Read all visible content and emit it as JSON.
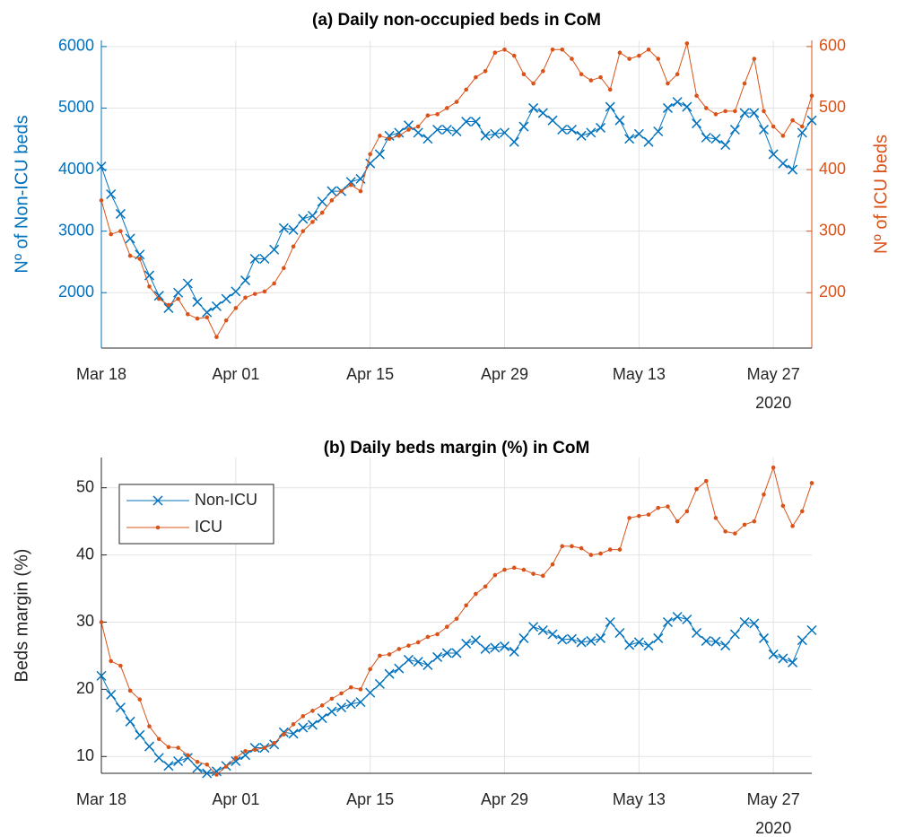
{
  "chart_data": [
    {
      "type": "line",
      "title": "(a) Daily non-occupied beds in CoM",
      "x": [
        "2020-03-18",
        "2020-03-19",
        "2020-03-20",
        "2020-03-21",
        "2020-03-22",
        "2020-03-23",
        "2020-03-24",
        "2020-03-25",
        "2020-03-26",
        "2020-03-27",
        "2020-03-28",
        "2020-03-29",
        "2020-03-30",
        "2020-03-31",
        "2020-04-01",
        "2020-04-02",
        "2020-04-03",
        "2020-04-04",
        "2020-04-05",
        "2020-04-06",
        "2020-04-07",
        "2020-04-08",
        "2020-04-09",
        "2020-04-10",
        "2020-04-11",
        "2020-04-12",
        "2020-04-13",
        "2020-04-14",
        "2020-04-15",
        "2020-04-16",
        "2020-04-17",
        "2020-04-18",
        "2020-04-19",
        "2020-04-20",
        "2020-04-21",
        "2020-04-22",
        "2020-04-23",
        "2020-04-24",
        "2020-04-25",
        "2020-04-26",
        "2020-04-27",
        "2020-04-28",
        "2020-04-29",
        "2020-04-30",
        "2020-05-01",
        "2020-05-02",
        "2020-05-03",
        "2020-05-04",
        "2020-05-05",
        "2020-05-06",
        "2020-05-07",
        "2020-05-08",
        "2020-05-09",
        "2020-05-10",
        "2020-05-11",
        "2020-05-12",
        "2020-05-13",
        "2020-05-14",
        "2020-05-15",
        "2020-05-16",
        "2020-05-17",
        "2020-05-18",
        "2020-05-19",
        "2020-05-20",
        "2020-05-21",
        "2020-05-22",
        "2020-05-23",
        "2020-05-24",
        "2020-05-25",
        "2020-05-26",
        "2020-05-27",
        "2020-05-28",
        "2020-05-29",
        "2020-05-30",
        "2020-05-31"
      ],
      "xlim": [
        "2020-03-18",
        "2020-05-31"
      ],
      "xticks": [
        {
          "value": "2020-03-18",
          "label": "Mar 18"
        },
        {
          "value": "2020-04-01",
          "label": "Apr 01"
        },
        {
          "value": "2020-04-15",
          "label": "Apr 15"
        },
        {
          "value": "2020-04-29",
          "label": "Apr 29"
        },
        {
          "value": "2020-05-13",
          "label": "May 13"
        },
        {
          "value": "2020-05-27",
          "label": "May 27"
        }
      ],
      "x_year": "2020",
      "ylabel": "Nº of Non-ICU beds",
      "y2label": "Nº of ICU beds",
      "ycolor": "#0072BD",
      "y2color": "#D95319",
      "ylim": [
        1100,
        6100
      ],
      "yticks": [
        2000,
        3000,
        4000,
        5000,
        6000
      ],
      "y2lim": [
        110,
        610
      ],
      "y2ticks": [
        200,
        300,
        400,
        500,
        600
      ],
      "grid": true,
      "series": [
        {
          "color": "#0072BD",
          "marker": "x",
          "values": [
            4050,
            3600,
            3280,
            2880,
            2620,
            2280,
            1950,
            1750,
            2000,
            2150,
            1850,
            1680,
            1780,
            1900,
            2020,
            2200,
            2550,
            2550,
            2700,
            3050,
            3020,
            3200,
            3250,
            3480,
            3650,
            3650,
            3800,
            3850,
            4100,
            4250,
            4550,
            4600,
            4720,
            4600,
            4500,
            4650,
            4650,
            4620,
            4780,
            4780,
            4550,
            4580,
            4600,
            4450,
            4700,
            5000,
            4920,
            4800,
            4650,
            4650,
            4550,
            4600,
            4680,
            5020,
            4800,
            4500,
            4580,
            4450,
            4620,
            5000,
            5100,
            5020,
            4750,
            4520,
            4500,
            4400,
            4650,
            4920,
            4920,
            4650,
            4250,
            4100,
            4000,
            4600,
            4800
          ]
        },
        {
          "color": "#D95319",
          "marker": "dot",
          "axis": "y2",
          "values": [
            350,
            295,
            300,
            260,
            255,
            210,
            190,
            180,
            190,
            165,
            158,
            160,
            128,
            155,
            175,
            192,
            198,
            202,
            215,
            240,
            275,
            300,
            315,
            330,
            350,
            365,
            375,
            365,
            425,
            455,
            450,
            455,
            465,
            470,
            488,
            490,
            500,
            510,
            530,
            550,
            560,
            590,
            595,
            585,
            555,
            540,
            560,
            595,
            595,
            580,
            555,
            545,
            550,
            530,
            590,
            580,
            585,
            595,
            580,
            540,
            555,
            605,
            520,
            500,
            490,
            495,
            495,
            540,
            580,
            495,
            470,
            455,
            480,
            470,
            520
          ]
        }
      ]
    },
    {
      "type": "line",
      "title": "(b) Daily beds margin (%) in CoM",
      "x": [
        "2020-03-18",
        "2020-03-19",
        "2020-03-20",
        "2020-03-21",
        "2020-03-22",
        "2020-03-23",
        "2020-03-24",
        "2020-03-25",
        "2020-03-26",
        "2020-03-27",
        "2020-03-28",
        "2020-03-29",
        "2020-03-30",
        "2020-03-31",
        "2020-04-01",
        "2020-04-02",
        "2020-04-03",
        "2020-04-04",
        "2020-04-05",
        "2020-04-06",
        "2020-04-07",
        "2020-04-08",
        "2020-04-09",
        "2020-04-10",
        "2020-04-11",
        "2020-04-12",
        "2020-04-13",
        "2020-04-14",
        "2020-04-15",
        "2020-04-16",
        "2020-04-17",
        "2020-04-18",
        "2020-04-19",
        "2020-04-20",
        "2020-04-21",
        "2020-04-22",
        "2020-04-23",
        "2020-04-24",
        "2020-04-25",
        "2020-04-26",
        "2020-04-27",
        "2020-04-28",
        "2020-04-29",
        "2020-04-30",
        "2020-05-01",
        "2020-05-02",
        "2020-05-03",
        "2020-05-04",
        "2020-05-05",
        "2020-05-06",
        "2020-05-07",
        "2020-05-08",
        "2020-05-09",
        "2020-05-10",
        "2020-05-11",
        "2020-05-12",
        "2020-05-13",
        "2020-05-14",
        "2020-05-15",
        "2020-05-16",
        "2020-05-17",
        "2020-05-18",
        "2020-05-19",
        "2020-05-20",
        "2020-05-21",
        "2020-05-22",
        "2020-05-23",
        "2020-05-24",
        "2020-05-25",
        "2020-05-26",
        "2020-05-27",
        "2020-05-28",
        "2020-05-29",
        "2020-05-30",
        "2020-05-31"
      ],
      "xlim": [
        "2020-03-18",
        "2020-05-31"
      ],
      "xticks": [
        {
          "value": "2020-03-18",
          "label": "Mar 18"
        },
        {
          "value": "2020-04-01",
          "label": "Apr 01"
        },
        {
          "value": "2020-04-15",
          "label": "Apr 15"
        },
        {
          "value": "2020-04-29",
          "label": "Apr 29"
        },
        {
          "value": "2020-05-13",
          "label": "May 13"
        },
        {
          "value": "2020-05-27",
          "label": "May 27"
        }
      ],
      "x_year": "2020",
      "ylabel": "Beds margin (%)",
      "ycolor": "#262626",
      "ylim": [
        7.5,
        54.5
      ],
      "yticks": [
        10,
        20,
        30,
        40,
        50
      ],
      "grid": true,
      "legend": "northwest",
      "series": [
        {
          "name": "Non-ICU",
          "color": "#0072BD",
          "marker": "x",
          "values": [
            22,
            19.2,
            17.3,
            15.2,
            13.2,
            11.5,
            9.8,
            8.6,
            9.3,
            9.8,
            8.3,
            7.5,
            7.8,
            8.6,
            9.3,
            10.2,
            11.3,
            11.3,
            11.8,
            13.6,
            13.4,
            14.3,
            14.7,
            15.7,
            16.7,
            17.3,
            17.8,
            18.1,
            19.5,
            20.8,
            22.3,
            23.1,
            24.4,
            24.1,
            23.6,
            24.8,
            25.4,
            25.4,
            26.8,
            27.3,
            26.0,
            26.2,
            26.4,
            25.6,
            27.6,
            29.3,
            28.8,
            28.2,
            27.4,
            27.5,
            27.0,
            27.2,
            27.6,
            30.0,
            28.4,
            26.6,
            27.0,
            26.5,
            27.6,
            30.0,
            30.8,
            30.4,
            28.4,
            27.2,
            27.1,
            26.5,
            28.2,
            30.0,
            29.8,
            27.6,
            25.2,
            24.6,
            24.0,
            27.3,
            28.8
          ]
        },
        {
          "name": "ICU",
          "color": "#D95319",
          "marker": "dot",
          "values": [
            30,
            24.2,
            23.5,
            19.8,
            18.5,
            14.5,
            12.6,
            11.4,
            11.3,
            10.2,
            9.2,
            8.8,
            7.3,
            8.5,
            9.8,
            10.8,
            11.0,
            11.3,
            12.0,
            13.3,
            14.8,
            16.0,
            16.8,
            17.6,
            18.6,
            19.4,
            20.3,
            20.0,
            23.0,
            25.0,
            25.2,
            26.0,
            26.5,
            27.0,
            27.8,
            28.2,
            29.3,
            30.5,
            32.5,
            34.2,
            35.3,
            37.0,
            37.8,
            38.1,
            37.8,
            37.2,
            36.9,
            38.6,
            41.3,
            41.3,
            41.0,
            40.0,
            40.2,
            40.8,
            40.8,
            45.5,
            45.8,
            46.0,
            47.0,
            47.2,
            45.0,
            46.5,
            49.8,
            51.0,
            45.5,
            43.5,
            43.2,
            44.5,
            45.0,
            49.0,
            53.0,
            47.3,
            44.3,
            46.5,
            50.7
          ]
        }
      ]
    }
  ]
}
